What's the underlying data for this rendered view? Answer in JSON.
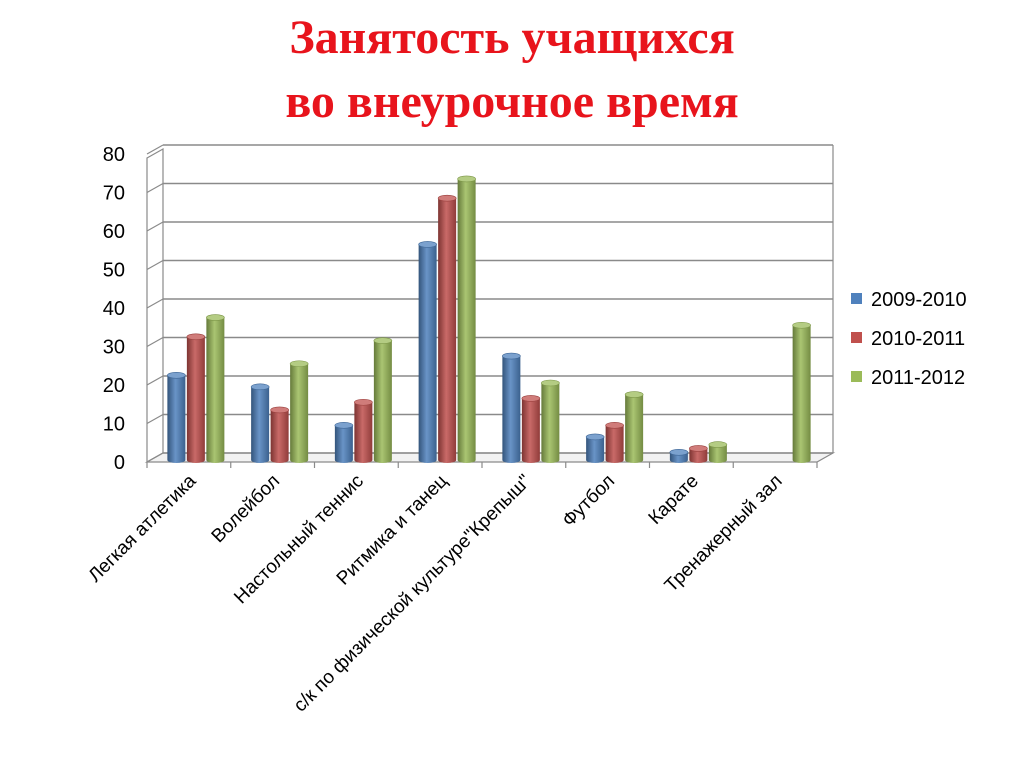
{
  "slide": {
    "title_line1": "Занятость учащихся",
    "title_line2": "во внеурочное время"
  },
  "chart_data": {
    "type": "bar",
    "title": "Занятость учащихся во внеурочное время",
    "categories": [
      "Легкая атлетика",
      "Волейбол",
      "Настольный теннис",
      "Ритмика и танец",
      "с/к по физической культуре\"Крепыш\"",
      "Футбол",
      "Карате",
      "Тренажерный зал"
    ],
    "series": [
      {
        "name": "2009-2010",
        "color": "#4f81bd",
        "values": [
          22,
          19,
          9,
          56,
          27,
          6,
          2,
          0
        ]
      },
      {
        "name": "2010-2011",
        "color": "#c0504d",
        "values": [
          32,
          13,
          15,
          68,
          16,
          9,
          3,
          0
        ]
      },
      {
        "name": "2011-2012",
        "color": "#9bbb59",
        "values": [
          37,
          25,
          31,
          73,
          20,
          17,
          4,
          35
        ]
      }
    ],
    "yticks": [
      "0",
      "10",
      "20",
      "30",
      "40",
      "50",
      "60",
      "70",
      "80"
    ],
    "ylim": [
      0,
      80
    ],
    "grid": true,
    "legend_position": "right"
  }
}
